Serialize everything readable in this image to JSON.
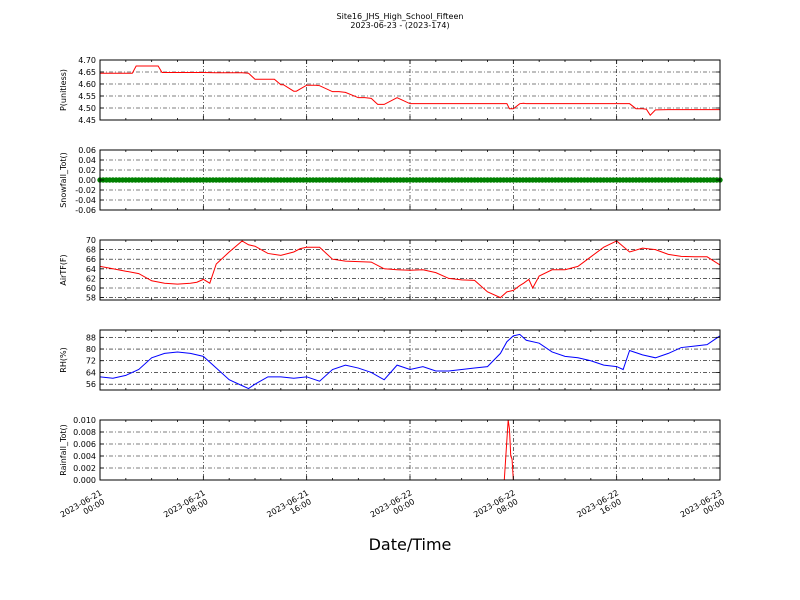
{
  "title_line1": "Site16_JHS_High_School_Fifteen",
  "title_line2": "2023-06-23 - (2023-174)",
  "xlabel": "Date/Time",
  "x_ticks": [
    {
      "t": 0,
      "line1": "2023-06-21",
      "line2": "00:00"
    },
    {
      "t": 8,
      "line1": "2023-06-21",
      "line2": "08:00"
    },
    {
      "t": 16,
      "line1": "2023-06-21",
      "line2": "16:00"
    },
    {
      "t": 24,
      "line1": "2023-06-22",
      "line2": "00:00"
    },
    {
      "t": 32,
      "line1": "2023-06-22",
      "line2": "08:00"
    },
    {
      "t": 40,
      "line1": "2023-06-22",
      "line2": "16:00"
    },
    {
      "t": 48,
      "line1": "2023-06-23",
      "line2": "00:00"
    }
  ],
  "colors": {
    "red": "#ff0000",
    "green": "#008000",
    "blue": "#0000ff",
    "axes": "#000000"
  },
  "chart_data": [
    {
      "type": "line",
      "ylabel": "P(unitless)",
      "ylim": [
        4.45,
        4.7
      ],
      "yticks": [
        "4.45",
        "4.50",
        "4.55",
        "4.60",
        "4.65",
        "4.70"
      ],
      "grid": true,
      "series": [
        {
          "color": "#ff0000",
          "marker": false,
          "x": [
            0,
            2.5,
            2.8,
            4.5,
            4.8,
            6,
            8,
            9,
            10,
            11,
            11.5,
            12,
            13,
            13.5,
            14,
            14.2,
            15,
            15.2,
            16,
            16.5,
            16.7,
            17,
            18,
            18.5,
            19,
            20,
            20.5,
            21,
            21.5,
            22,
            23,
            24,
            25,
            26,
            27,
            28,
            29,
            30,
            31,
            31.5,
            31.7,
            32,
            32.5,
            32.8,
            33,
            34,
            35,
            36,
            37,
            38,
            39,
            40,
            40.5,
            41,
            41.5,
            42,
            42.3,
            42.6,
            43,
            44,
            45,
            46,
            47,
            48
          ],
          "y": [
            4.645,
            4.645,
            4.675,
            4.675,
            4.648,
            4.648,
            4.648,
            4.647,
            4.647,
            4.647,
            4.645,
            4.62,
            4.62,
            4.62,
            4.597,
            4.597,
            4.57,
            4.57,
            4.595,
            4.595,
            4.595,
            4.593,
            4.568,
            4.568,
            4.565,
            4.543,
            4.543,
            4.54,
            4.515,
            4.515,
            4.543,
            4.518,
            4.518,
            4.518,
            4.518,
            4.518,
            4.518,
            4.518,
            4.518,
            4.518,
            4.497,
            4.497,
            4.518,
            4.52,
            4.518,
            4.518,
            4.518,
            4.518,
            4.518,
            4.518,
            4.518,
            4.518,
            4.518,
            4.518,
            4.497,
            4.497,
            4.495,
            4.47,
            4.492,
            4.493,
            4.493,
            4.493,
            4.493,
            4.493
          ]
        }
      ]
    },
    {
      "type": "scatter",
      "ylabel": "Snowfall_Tot()",
      "ylim": [
        -0.06,
        0.06
      ],
      "yticks": [
        "-0.06",
        "-0.04",
        "-0.02",
        "0.00",
        "0.02",
        "0.04",
        "0.06"
      ],
      "grid": true,
      "series": [
        {
          "color": "#008000",
          "marker": true,
          "constant": 0.0,
          "x_range": [
            0,
            48
          ]
        }
      ]
    },
    {
      "type": "line",
      "ylabel": "AirTF(F)",
      "ylim": [
        57.5,
        70
      ],
      "yticks": [
        "58",
        "60",
        "62",
        "64",
        "66",
        "68",
        "70"
      ],
      "grid": true,
      "series": [
        {
          "color": "#ff0000",
          "marker": false,
          "x": [
            0,
            1,
            2,
            3,
            4,
            5,
            6,
            7,
            7.5,
            8,
            8.5,
            9,
            10,
            11,
            11.5,
            12,
            13,
            14,
            15,
            15.5,
            16,
            17,
            18,
            19,
            20,
            21,
            22,
            23,
            24,
            25,
            26,
            27,
            28,
            29,
            30,
            31,
            31.5,
            32,
            32.5,
            32.8,
            33.2,
            33.5,
            34,
            35,
            36,
            37,
            38,
            39,
            40,
            41,
            42,
            43,
            44,
            45,
            46,
            47,
            48
          ],
          "y": [
            64.5,
            64,
            63.5,
            63,
            61.5,
            61,
            60.8,
            61,
            61.2,
            61.8,
            61,
            65,
            67.5,
            69.8,
            69,
            68.7,
            67.2,
            66.8,
            67.5,
            68.2,
            68.5,
            68.5,
            66,
            65.6,
            65.5,
            65.4,
            64,
            63.8,
            63.7,
            63.8,
            63.2,
            62,
            61.7,
            61.6,
            59.2,
            58,
            59.2,
            59.5,
            60.5,
            61,
            61.8,
            60,
            62.5,
            63.8,
            63.8,
            64.5,
            66.5,
            68.5,
            69.8,
            67.5,
            68.3,
            68,
            67,
            66.6,
            66.5,
            66.5,
            64.8
          ]
        }
      ]
    },
    {
      "type": "line",
      "ylabel": "RH(%)",
      "ylim": [
        52,
        93
      ],
      "yticks": [
        "56",
        "64",
        "72",
        "80",
        "88"
      ],
      "grid": true,
      "series": [
        {
          "color": "#0000ff",
          "marker": false,
          "x": [
            0,
            1,
            2,
            3,
            4,
            5,
            6,
            7,
            8,
            9,
            10,
            11,
            11.5,
            12,
            13,
            14,
            15,
            16,
            17,
            18,
            19,
            20,
            21,
            22,
            23,
            24,
            25,
            26,
            27,
            28,
            29,
            30,
            31,
            31.5,
            32,
            32.5,
            33,
            34,
            35,
            36,
            37,
            38,
            39,
            40,
            40.5,
            41,
            42,
            43,
            44,
            45,
            46,
            47,
            48
          ],
          "y": [
            61,
            60,
            62,
            66,
            74,
            77,
            78,
            77,
            75,
            67,
            59,
            55,
            53,
            56,
            61,
            61,
            60,
            61,
            58,
            66,
            69,
            67,
            64,
            59,
            69,
            66,
            68,
            65,
            65,
            66,
            67,
            68,
            77,
            85,
            89,
            90,
            86,
            84,
            78,
            75,
            74,
            72,
            69,
            68,
            66,
            79,
            76,
            74,
            77,
            81,
            82,
            83,
            89
          ]
        }
      ]
    },
    {
      "type": "line",
      "ylabel": "Rainfall_Tot()",
      "ylim": [
        0,
        0.01
      ],
      "yticks": [
        "0.000",
        "0.002",
        "0.004",
        "0.006",
        "0.008",
        "0.010"
      ],
      "grid": true,
      "series": [
        {
          "color": "#ff0000",
          "marker": false,
          "x": [
            0,
            31.3,
            31.6,
            31.7,
            31.8,
            31.9,
            32,
            48
          ],
          "y": [
            0,
            0,
            0.01,
            0.0085,
            0.004,
            0.0035,
            0,
            0
          ]
        }
      ]
    }
  ]
}
